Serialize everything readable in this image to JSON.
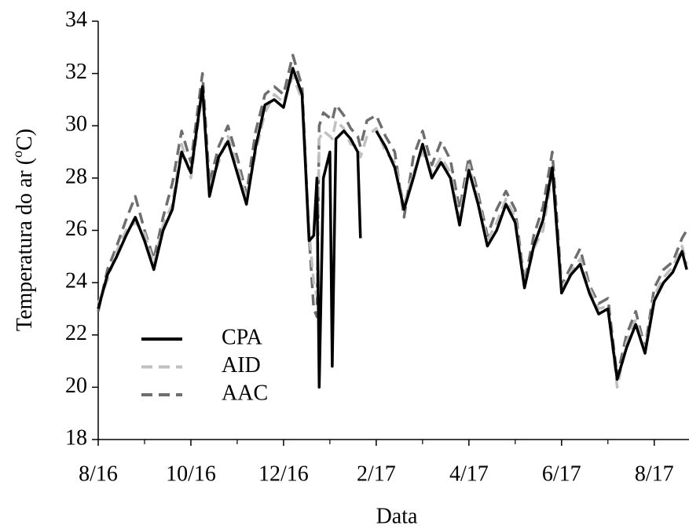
{
  "chart_data": {
    "type": "line",
    "x_label": "Data",
    "y_label_parts": [
      "Temperatura do ar (",
      "o",
      "C)"
    ],
    "x": [
      0,
      0.2,
      0.4,
      0.6,
      0.8,
      1.0,
      1.2,
      1.4,
      1.6,
      1.8,
      2.0,
      2.25,
      2.4,
      2.6,
      2.8,
      3.0,
      3.2,
      3.4,
      3.6,
      3.8,
      4.0,
      4.2,
      4.4,
      4.55,
      4.65,
      4.72,
      4.77,
      4.86,
      5.0,
      5.05,
      5.13,
      5.3,
      5.45,
      5.6,
      5.66,
      5.8,
      6.0,
      6.2,
      6.4,
      6.6,
      6.8,
      7.0,
      7.2,
      7.4,
      7.6,
      7.8,
      8.0,
      8.2,
      8.4,
      8.6,
      8.8,
      9.0,
      9.2,
      9.4,
      9.6,
      9.8,
      10.0,
      10.2,
      10.4,
      10.6,
      10.8,
      11.0,
      11.2,
      11.4,
      11.6,
      11.8,
      12.0,
      12.2,
      12.4,
      12.6,
      12.7
    ],
    "series": [
      {
        "name": "CPA",
        "color": "#000000",
        "dashed": false,
        "values": [
          23.0,
          24.3,
          25.0,
          25.8,
          26.5,
          25.6,
          24.5,
          26.0,
          26.8,
          29.0,
          28.2,
          31.5,
          27.3,
          28.8,
          29.4,
          28.2,
          27.0,
          29.2,
          30.8,
          31.0,
          30.7,
          32.2,
          31.2,
          25.6,
          25.8,
          28.0,
          20.0,
          28.0,
          29.0,
          20.8,
          29.5,
          29.8,
          29.5,
          29.0,
          25.7,
          null,
          29.8,
          29.2,
          28.4,
          26.8,
          28.0,
          29.3,
          28.0,
          28.6,
          28.0,
          26.2,
          28.3,
          27.0,
          25.4,
          26.0,
          27.0,
          26.3,
          23.8,
          25.4,
          26.4,
          28.4,
          23.6,
          24.3,
          24.7,
          23.6,
          22.8,
          23.0,
          20.3,
          21.5,
          22.4,
          21.3,
          23.3,
          24.0,
          24.4,
          25.2,
          24.5
        ]
      },
      {
        "name": "AID",
        "color": "#c0c0c0",
        "dashed": true,
        "values": [
          23.2,
          24.1,
          25.2,
          26.0,
          26.3,
          25.9,
          24.7,
          26.2,
          27.0,
          29.3,
          28.0,
          31.3,
          27.6,
          28.6,
          29.6,
          28.5,
          27.2,
          29.0,
          30.5,
          31.2,
          30.9,
          31.9,
          31.0,
          26.0,
          24.0,
          23.5,
          29.5,
          29.8,
          29.6,
          29.5,
          30.2,
          29.9,
          29.3,
          29.2,
          28.8,
          29.6,
          29.9,
          29.0,
          28.6,
          27.0,
          28.2,
          29.0,
          28.2,
          28.8,
          28.2,
          26.5,
          28.5,
          27.2,
          25.6,
          26.3,
          27.2,
          26.5,
          23.9,
          25.3,
          26.0,
          28.2,
          23.8,
          24.4,
          24.9,
          23.8,
          23.0,
          23.1,
          20.0,
          21.7,
          22.6,
          21.4,
          23.5,
          24.2,
          24.6,
          25.4,
          24.7
        ]
      },
      {
        "name": "AAC",
        "color": "#6e6e6e",
        "dashed": true,
        "values": [
          22.9,
          24.5,
          25.4,
          26.4,
          27.3,
          26.0,
          24.9,
          26.5,
          27.8,
          29.8,
          28.6,
          32.0,
          27.8,
          29.2,
          30.0,
          28.8,
          27.4,
          29.8,
          31.2,
          31.5,
          31.2,
          32.7,
          31.5,
          25.8,
          23.0,
          22.7,
          30.0,
          30.5,
          30.3,
          30.2,
          30.8,
          30.4,
          29.9,
          29.6,
          29.2,
          30.2,
          30.4,
          29.6,
          29.0,
          26.5,
          28.8,
          29.8,
          28.5,
          29.4,
          28.7,
          26.8,
          28.8,
          27.4,
          25.8,
          26.8,
          27.5,
          26.8,
          24.0,
          25.8,
          26.9,
          29.0,
          23.9,
          24.6,
          25.3,
          23.9,
          23.2,
          23.4,
          20.4,
          22.0,
          22.9,
          21.5,
          23.8,
          24.5,
          24.8,
          25.7,
          26.0
        ]
      }
    ],
    "xlim": [
      0,
      12.75
    ],
    "xticks": [
      {
        "value": 0,
        "label": "8/16"
      },
      {
        "value": 2,
        "label": "10/16"
      },
      {
        "value": 4,
        "label": "12/16"
      },
      {
        "value": 6,
        "label": "2/17"
      },
      {
        "value": 8,
        "label": "4/17"
      },
      {
        "value": 10,
        "label": "6/17"
      },
      {
        "value": 12,
        "label": "8/17"
      }
    ],
    "ylim": [
      18,
      34
    ],
    "yticks": [
      18,
      20,
      22,
      24,
      26,
      28,
      30,
      32,
      34
    ],
    "grid": false,
    "legend": "lower-left"
  }
}
